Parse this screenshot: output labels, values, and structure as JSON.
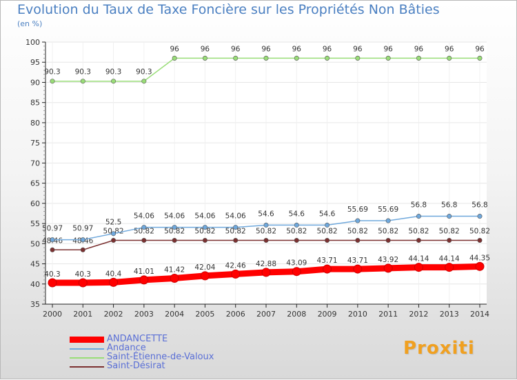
{
  "chart_data": {
    "type": "line",
    "title": "Evolution du Taux de Taxe Foncière sur les Propriétés Non Bâties",
    "ylabel": "(en %)",
    "xlabel": "",
    "x": [
      2000,
      2001,
      2002,
      2003,
      2004,
      2005,
      2006,
      2007,
      2008,
      2009,
      2010,
      2011,
      2012,
      2013,
      2014
    ],
    "ylim": [
      35,
      100
    ],
    "yticks": [
      35,
      40,
      45,
      50,
      55,
      60,
      65,
      70,
      75,
      80,
      85,
      90,
      95,
      100
    ],
    "series": [
      {
        "name": "ANDANCETTE",
        "color": "#ff0000",
        "values": [
          40.3,
          40.3,
          40.4,
          41.01,
          41.42,
          42.04,
          42.46,
          42.88,
          43.09,
          43.71,
          43.71,
          43.92,
          44.14,
          44.14,
          44.35
        ],
        "labels": [
          "40.3",
          "40.3",
          "40.4",
          "41.01",
          "41.42",
          "42.04",
          "42.46",
          "42.88",
          "43.09",
          "43.71",
          "43.71",
          "43.92",
          "44.14",
          "44.14",
          "44.35"
        ]
      },
      {
        "name": "Andance",
        "color": "#6fa8dc",
        "values": [
          50.97,
          50.97,
          52.5,
          54.06,
          54.06,
          54.06,
          54.06,
          54.6,
          54.6,
          54.6,
          55.69,
          55.69,
          56.8,
          56.8,
          56.8
        ],
        "labels": [
          "50.97",
          "50.97",
          "52.5",
          "54.06",
          "54.06",
          "54.06",
          "54.06",
          "54.6",
          "54.6",
          "54.6",
          "55.69",
          "55.69",
          "56.8",
          "56.8",
          "56.8"
        ]
      },
      {
        "name": "Saint-Étienne-de-Valoux",
        "color": "#99dd77",
        "values": [
          90.3,
          90.3,
          90.3,
          90.3,
          96,
          96,
          96,
          96,
          96,
          96,
          96,
          96,
          96,
          96,
          96
        ],
        "labels": [
          "90.3",
          "90.3",
          "90.3",
          "90.3",
          "96",
          "96",
          "96",
          "96",
          "96",
          "96",
          "96",
          "96",
          "96",
          "96",
          "96"
        ]
      },
      {
        "name": "Saint-Désirat",
        "color": "#7b3030",
        "values": [
          48.46,
          48.46,
          50.82,
          50.82,
          50.82,
          50.82,
          50.82,
          50.82,
          50.82,
          50.82,
          50.82,
          50.82,
          50.82,
          50.82,
          50.82
        ],
        "labels": [
          "48.46",
          "48.46",
          "50.82",
          "50.82",
          "50.82",
          "50.82",
          "50.82",
          "50.82",
          "50.82",
          "50.82",
          "50.82",
          "50.82",
          "50.82",
          "50.82",
          "50.82"
        ]
      }
    ]
  },
  "logo_text": "Proxiti"
}
